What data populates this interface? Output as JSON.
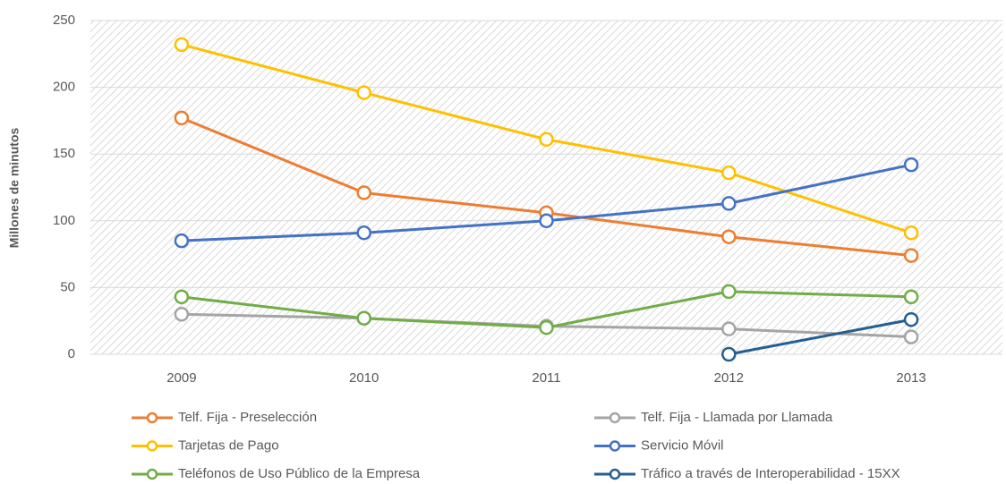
{
  "chart_data": {
    "type": "line",
    "y_label": "Millones de minutos",
    "categories": [
      "2009",
      "2010",
      "2011",
      "2012",
      "2013"
    ],
    "series": [
      {
        "name": "Telf. Fija - Preselección",
        "color": "#ed7d31",
        "values": [
          177,
          121,
          106,
          88,
          74
        ]
      },
      {
        "name": "Telf. Fija - Llamada por Llamada",
        "color": "#a5a5a5",
        "values": [
          30,
          27,
          21,
          19,
          13
        ]
      },
      {
        "name": "Tarjetas de Pago",
        "color": "#ffc000",
        "values": [
          232,
          196,
          161,
          136,
          91
        ]
      },
      {
        "name": "Servicio Móvil",
        "color": "#4472c4",
        "values": [
          85,
          91,
          100,
          113,
          142
        ]
      },
      {
        "name": "Teléfonos de Uso Público de la Empresa",
        "color": "#70ad47",
        "values": [
          43,
          27,
          20,
          47,
          43
        ]
      },
      {
        "name": "Tráfico a través de Interoperabilidad - 15XX",
        "color": "#255e91",
        "values": [
          null,
          null,
          null,
          0,
          26
        ]
      }
    ],
    "ylim": [
      0,
      250
    ],
    "yticks": [
      0,
      50,
      100,
      150,
      200,
      250
    ],
    "grid": true,
    "legend": "bottom"
  }
}
